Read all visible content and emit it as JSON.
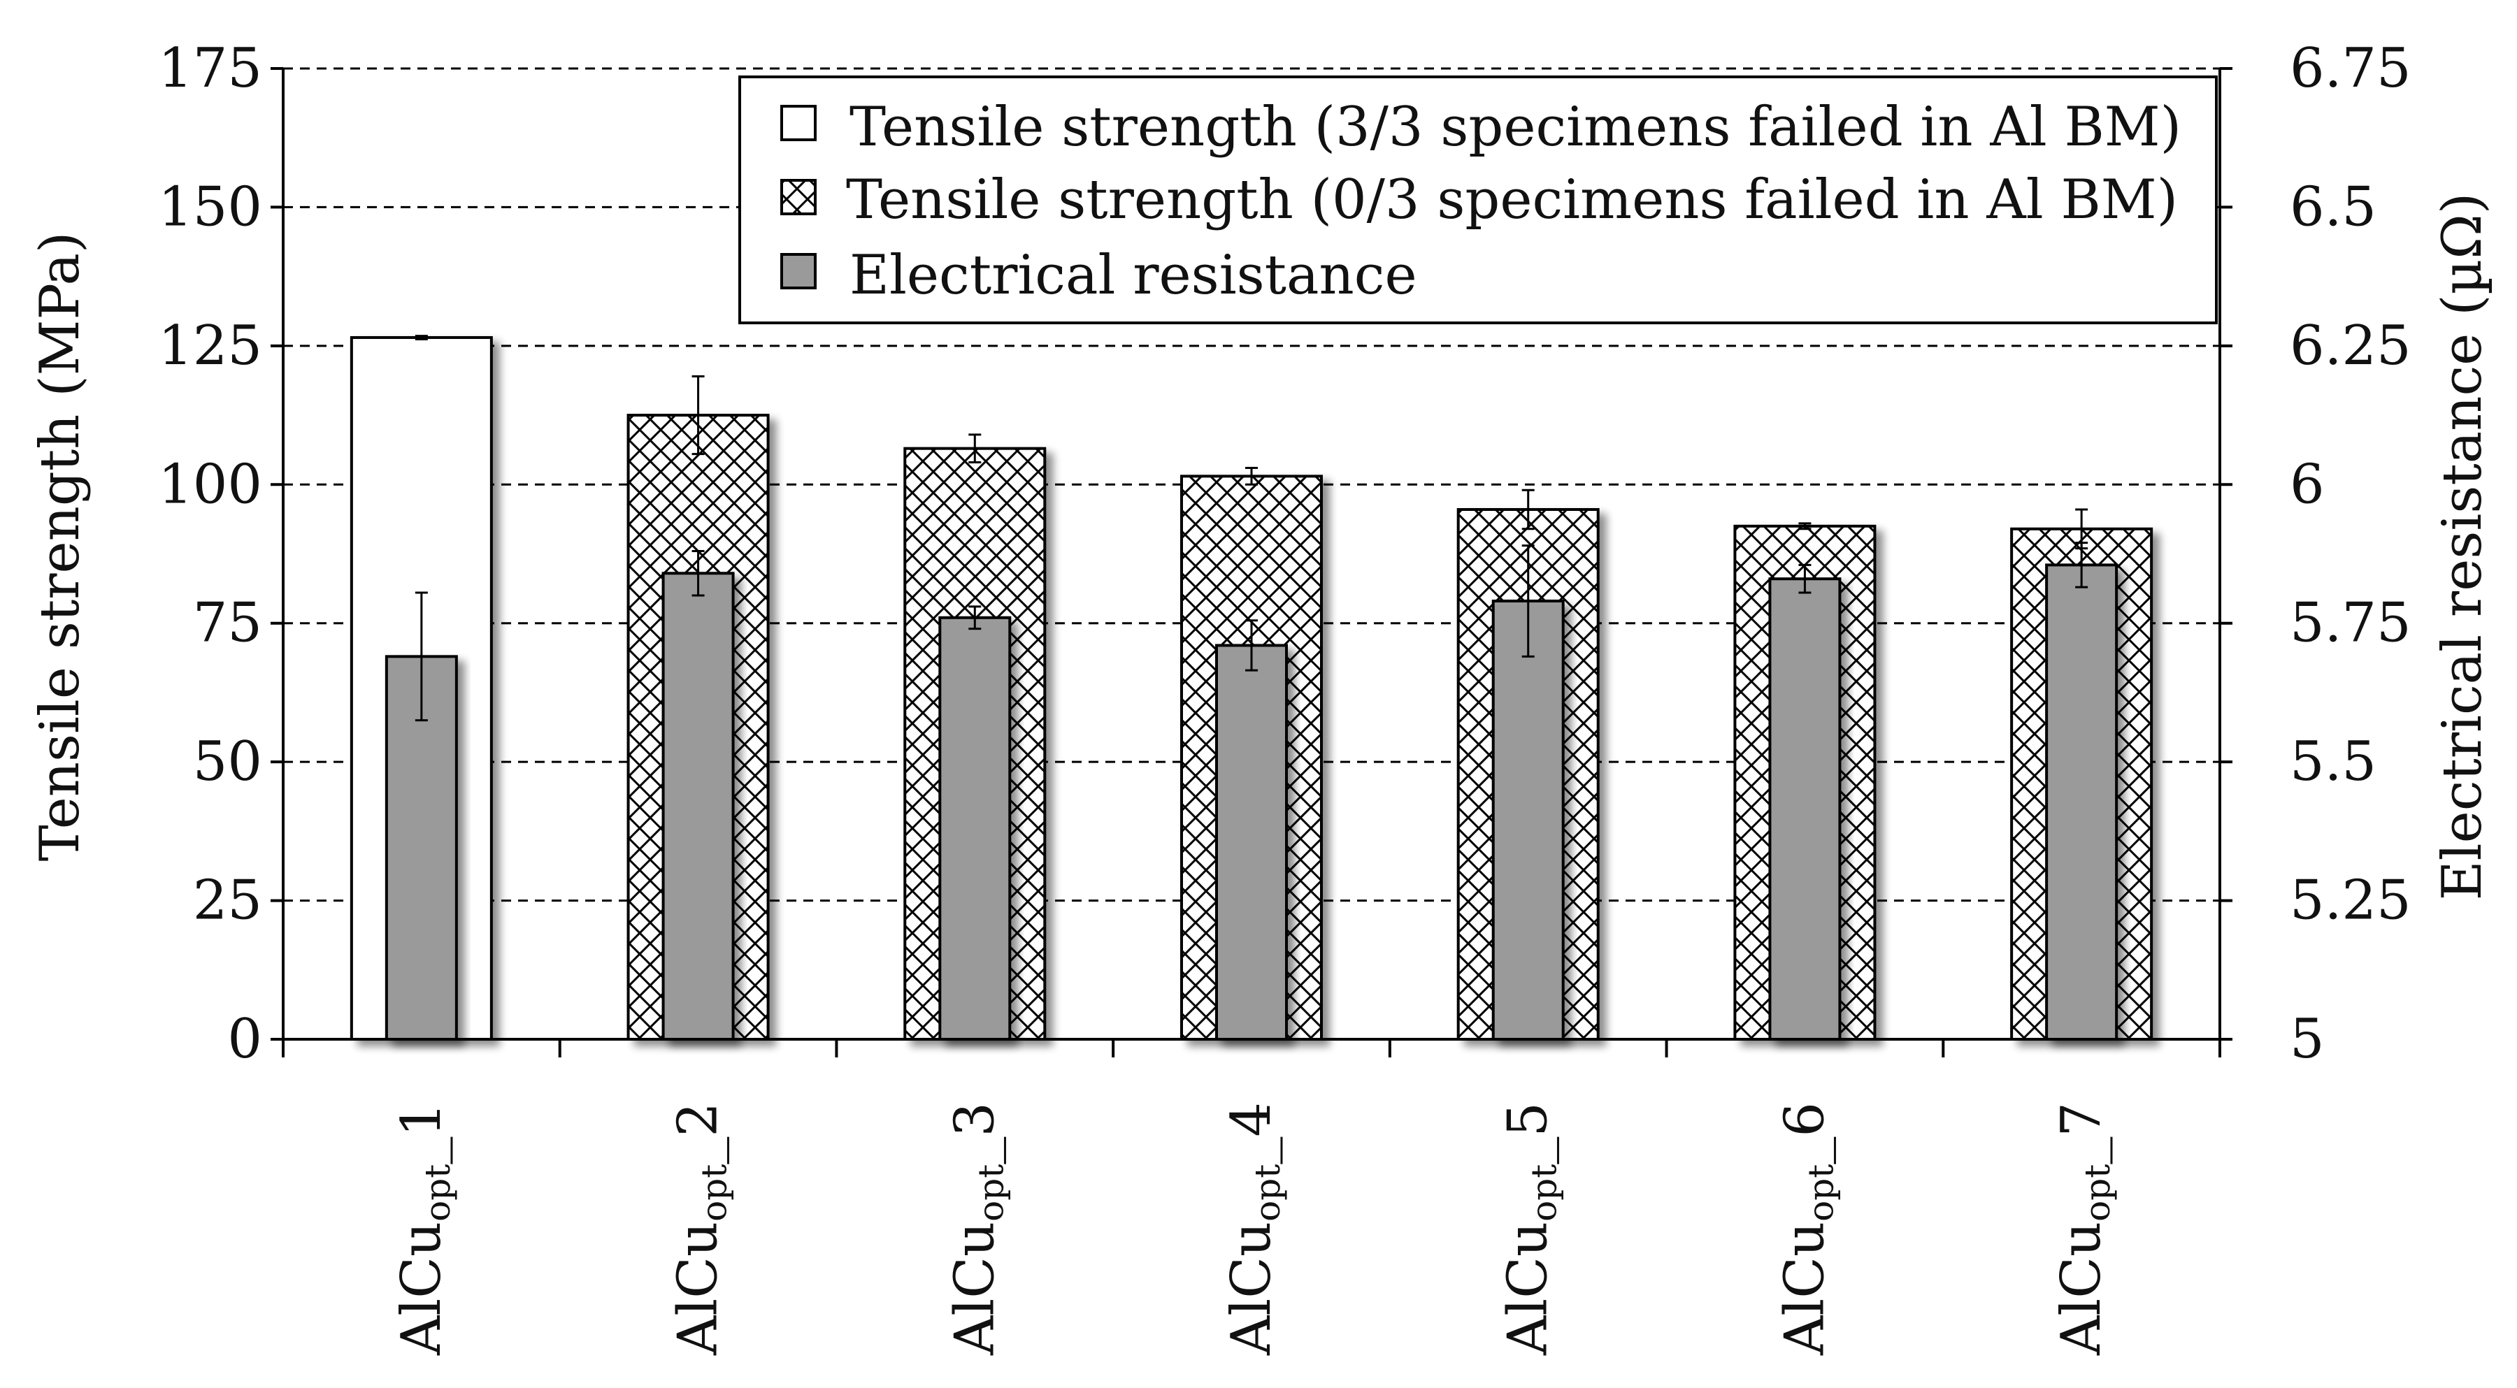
{
  "chart_data": {
    "type": "bar",
    "categories": [
      {
        "main": "AlCu",
        "sub": "opt",
        "suffix": "_1"
      },
      {
        "main": "AlCu",
        "sub": "opt",
        "suffix": "_2"
      },
      {
        "main": "AlCu",
        "sub": "opt",
        "suffix": "_3"
      },
      {
        "main": "AlCu",
        "sub": "opt",
        "suffix": "_4"
      },
      {
        "main": "AlCu",
        "sub": "opt",
        "suffix": "_5"
      },
      {
        "main": "AlCu",
        "sub": "opt",
        "suffix": "_6"
      },
      {
        "main": "AlCu",
        "sub": "opt",
        "suffix": "_7"
      }
    ],
    "series": [
      {
        "name": "Tensile strength",
        "axis": "left",
        "values": [
          126.5,
          112.5,
          106.5,
          101.5,
          95.5,
          92.5,
          92.0
        ],
        "errors": [
          0.3,
          7.0,
          2.5,
          1.5,
          3.5,
          0.5,
          3.5
        ],
        "failed_in_base_metal": [
          true,
          false,
          false,
          false,
          false,
          false,
          false
        ]
      },
      {
        "name": "Electrical resistance",
        "axis": "right",
        "values": [
          5.69,
          5.84,
          5.76,
          5.71,
          5.79,
          5.83,
          5.855
        ],
        "errors": [
          0.115,
          0.04,
          0.02,
          0.045,
          0.1,
          0.025,
          0.04
        ]
      }
    ],
    "legend": [
      {
        "label": "Tensile strength (3/3 specimens failed in Al BM)",
        "style": "white"
      },
      {
        "label": "Tensile strength (0/3 specimens failed in Al BM)",
        "style": "hatch"
      },
      {
        "label": "Electrical resistance",
        "style": "gray"
      }
    ],
    "ylabel": "Tensile strength (MPa)",
    "y2label": "Electrical resistance (µΩ)",
    "ylim": [
      0,
      175
    ],
    "yticks": [
      0,
      25,
      50,
      75,
      100,
      125,
      150,
      175
    ],
    "y2lim": [
      5,
      6.75
    ],
    "y2ticks": [
      "5",
      "5.25",
      "5.5",
      "5.75",
      "6",
      "6.25",
      "6.5",
      "6.75"
    ],
    "gridlines": "dashed",
    "legend_position": "top-right"
  },
  "colors": {
    "gray_bar": "#9a9a9a",
    "outline": "#000000",
    "shadow": "#c2c2c2",
    "grid": "#000000"
  }
}
